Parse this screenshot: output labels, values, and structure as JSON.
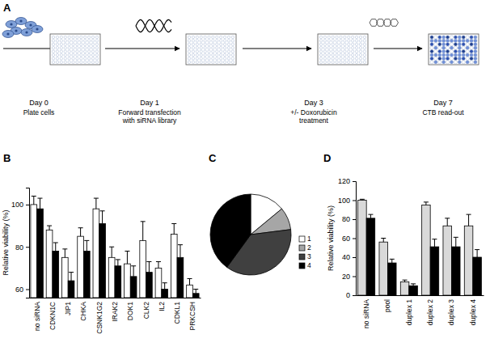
{
  "workflow": {
    "panel": "A",
    "steps": [
      {
        "day": "Day 0",
        "label": [
          "Plate cells"
        ]
      },
      {
        "day": "Day 1",
        "label": [
          "Forward transfection",
          "with siRNA library"
        ]
      },
      {
        "day": "Day 3",
        "label": [
          "+/- Doxorubicin",
          "treatment"
        ]
      },
      {
        "day": "Day 7",
        "label": [
          "CTB read-out"
        ]
      }
    ]
  },
  "chart_data": [
    {
      "type": "bar",
      "title": "B",
      "ylabel": "Relative viability (%)",
      "categories": [
        "no siRNA",
        "CDKN1C",
        "JIP1",
        "CHKA",
        "CSNK1G2",
        "IRAK2",
        "DOK1",
        "CLK2",
        "IL2",
        "CDKL1",
        "PRKCSH"
      ],
      "series": [
        {
          "color": "#ffffff",
          "values": [
            100,
            88,
            75,
            85,
            98,
            75,
            72,
            83,
            70,
            86,
            62
          ],
          "errors": [
            4,
            2,
            4,
            4,
            5,
            5,
            6,
            9,
            3,
            5,
            3
          ]
        },
        {
          "color": "#000000",
          "values": [
            98,
            78,
            64,
            78,
            91,
            71,
            66,
            68,
            60,
            75,
            58
          ],
          "errors": [
            5,
            4,
            4,
            5,
            6,
            3,
            5,
            5,
            3,
            6,
            2
          ]
        }
      ],
      "ylim": [
        56,
        108
      ],
      "yticks": [
        60,
        80,
        100
      ]
    },
    {
      "type": "pie",
      "title": "C",
      "categories": [
        "1",
        "2",
        "3",
        "4"
      ],
      "values": [
        14,
        9,
        37,
        40
      ],
      "colors": [
        "#ffffff",
        "#a6a6a6",
        "#404040",
        "#000000"
      ],
      "legend": "right"
    },
    {
      "type": "bar",
      "title": "D",
      "ylabel": "Relative viability (%)",
      "categories": [
        "no siRNA",
        "pool",
        "duplex 1",
        "duplex 2",
        "duplex 3",
        "duplex 4"
      ],
      "series": [
        {
          "color": "#d9d9d9",
          "values": [
            100,
            56,
            14,
            95,
            73,
            73
          ],
          "errors": [
            1,
            4,
            2,
            3,
            8,
            12
          ]
        },
        {
          "color": "#000000",
          "values": [
            81,
            34,
            10,
            51,
            51,
            40
          ],
          "errors": [
            4,
            4,
            2,
            8,
            10,
            8
          ]
        }
      ],
      "ylim": [
        0,
        120
      ],
      "yticks": [
        0,
        20,
        40,
        60,
        80,
        100,
        120
      ]
    }
  ]
}
